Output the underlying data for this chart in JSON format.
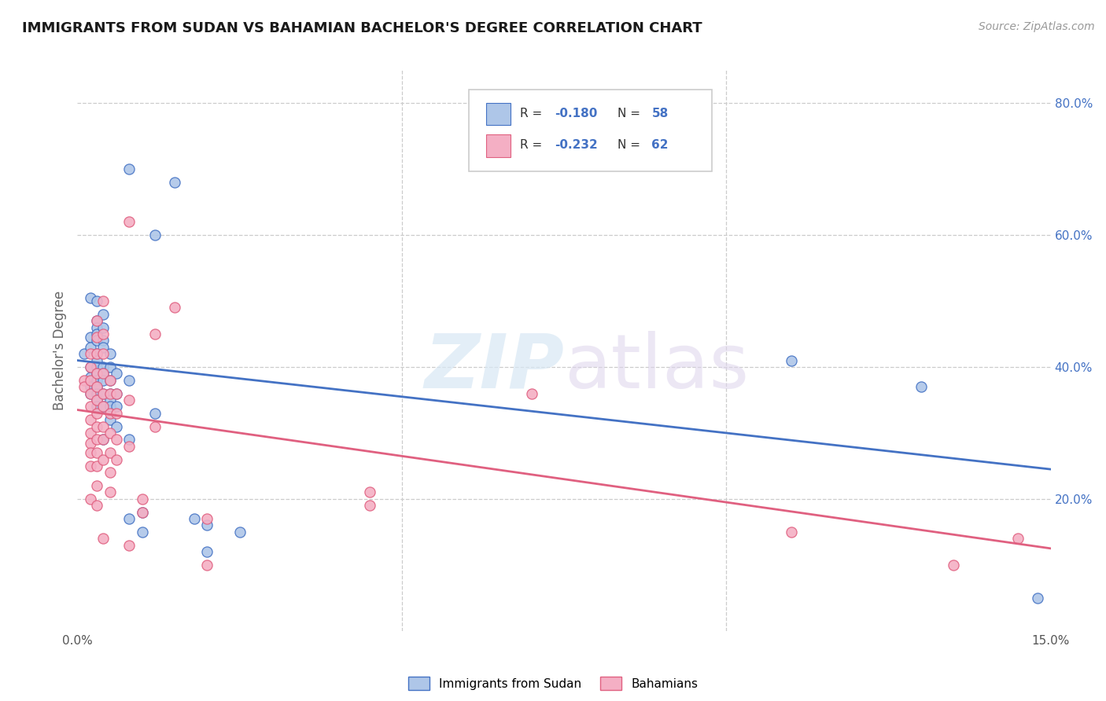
{
  "title": "IMMIGRANTS FROM SUDAN VS BAHAMIAN BACHELOR'S DEGREE CORRELATION CHART",
  "source": "Source: ZipAtlas.com",
  "ylabel": "Bachelor's Degree",
  "legend_bottom1": "Immigrants from Sudan",
  "legend_bottom2": "Bahamians",
  "color_blue": "#aec6e8",
  "color_pink": "#f4afc4",
  "line_blue": "#4472c4",
  "line_pink": "#e06080",
  "xlim": [
    0.0,
    15.0
  ],
  "ylim": [
    0.0,
    85.0
  ],
  "xticks": [
    0.0,
    15.0
  ],
  "xticklabels": [
    "0.0%",
    "15.0%"
  ],
  "right_yticks": [
    20.0,
    40.0,
    60.0,
    80.0
  ],
  "right_yticklabels": [
    "20.0%",
    "40.0%",
    "60.0%",
    "80.0%"
  ],
  "blue_line_x": [
    0.0,
    15.0
  ],
  "blue_line_y": [
    41.0,
    24.5
  ],
  "pink_line_x": [
    0.0,
    15.0
  ],
  "pink_line_y": [
    33.5,
    12.5
  ],
  "blue_scatter": [
    [
      0.1,
      42.0
    ],
    [
      0.2,
      44.5
    ],
    [
      0.2,
      40.0
    ],
    [
      0.2,
      38.5
    ],
    [
      0.2,
      43.0
    ],
    [
      0.2,
      37.0
    ],
    [
      0.2,
      36.0
    ],
    [
      0.2,
      50.5
    ],
    [
      0.3,
      39.0
    ],
    [
      0.3,
      50.0
    ],
    [
      0.3,
      47.0
    ],
    [
      0.3,
      46.0
    ],
    [
      0.3,
      45.0
    ],
    [
      0.3,
      44.0
    ],
    [
      0.3,
      42.0
    ],
    [
      0.3,
      41.0
    ],
    [
      0.3,
      40.0
    ],
    [
      0.3,
      39.0
    ],
    [
      0.3,
      38.0
    ],
    [
      0.3,
      37.0
    ],
    [
      0.3,
      36.0
    ],
    [
      0.3,
      35.0
    ],
    [
      0.3,
      34.0
    ],
    [
      0.4,
      48.0
    ],
    [
      0.4,
      46.0
    ],
    [
      0.4,
      44.0
    ],
    [
      0.4,
      43.0
    ],
    [
      0.4,
      40.0
    ],
    [
      0.4,
      39.0
    ],
    [
      0.4,
      38.0
    ],
    [
      0.4,
      36.0
    ],
    [
      0.4,
      34.0
    ],
    [
      0.4,
      29.0
    ],
    [
      0.5,
      42.0
    ],
    [
      0.5,
      40.0
    ],
    [
      0.5,
      38.0
    ],
    [
      0.5,
      36.0
    ],
    [
      0.5,
      35.0
    ],
    [
      0.5,
      34.0
    ],
    [
      0.5,
      32.0
    ],
    [
      0.6,
      39.0
    ],
    [
      0.6,
      36.0
    ],
    [
      0.6,
      34.0
    ],
    [
      0.6,
      31.0
    ],
    [
      0.8,
      70.0
    ],
    [
      0.8,
      38.0
    ],
    [
      0.8,
      29.0
    ],
    [
      0.8,
      17.0
    ],
    [
      1.0,
      15.0
    ],
    [
      1.0,
      18.0
    ],
    [
      1.2,
      60.0
    ],
    [
      1.2,
      33.0
    ],
    [
      1.5,
      68.0
    ],
    [
      2.0,
      16.0
    ],
    [
      2.0,
      12.0
    ],
    [
      1.8,
      17.0
    ],
    [
      2.5,
      15.0
    ],
    [
      11.0,
      41.0
    ],
    [
      13.0,
      37.0
    ],
    [
      14.8,
      5.0
    ]
  ],
  "pink_scatter": [
    [
      0.1,
      38.0
    ],
    [
      0.1,
      37.0
    ],
    [
      0.2,
      42.0
    ],
    [
      0.2,
      40.0
    ],
    [
      0.2,
      38.0
    ],
    [
      0.2,
      36.0
    ],
    [
      0.2,
      34.0
    ],
    [
      0.2,
      32.0
    ],
    [
      0.2,
      30.0
    ],
    [
      0.2,
      28.5
    ],
    [
      0.2,
      27.0
    ],
    [
      0.2,
      25.0
    ],
    [
      0.2,
      20.0
    ],
    [
      0.3,
      47.0
    ],
    [
      0.3,
      44.5
    ],
    [
      0.3,
      42.0
    ],
    [
      0.3,
      39.0
    ],
    [
      0.3,
      37.0
    ],
    [
      0.3,
      35.0
    ],
    [
      0.3,
      33.0
    ],
    [
      0.3,
      31.0
    ],
    [
      0.3,
      29.0
    ],
    [
      0.3,
      27.0
    ],
    [
      0.3,
      25.0
    ],
    [
      0.3,
      22.0
    ],
    [
      0.3,
      19.0
    ],
    [
      0.4,
      50.0
    ],
    [
      0.4,
      45.0
    ],
    [
      0.4,
      42.0
    ],
    [
      0.4,
      39.0
    ],
    [
      0.4,
      36.0
    ],
    [
      0.4,
      34.0
    ],
    [
      0.4,
      31.0
    ],
    [
      0.4,
      29.0
    ],
    [
      0.4,
      26.0
    ],
    [
      0.4,
      14.0
    ],
    [
      0.5,
      38.0
    ],
    [
      0.5,
      36.0
    ],
    [
      0.5,
      33.0
    ],
    [
      0.5,
      30.0
    ],
    [
      0.5,
      27.0
    ],
    [
      0.5,
      24.0
    ],
    [
      0.5,
      21.0
    ],
    [
      0.6,
      36.0
    ],
    [
      0.6,
      33.0
    ],
    [
      0.6,
      29.0
    ],
    [
      0.6,
      26.0
    ],
    [
      0.8,
      62.0
    ],
    [
      0.8,
      35.0
    ],
    [
      0.8,
      28.0
    ],
    [
      0.8,
      13.0
    ],
    [
      1.0,
      20.0
    ],
    [
      1.0,
      18.0
    ],
    [
      1.2,
      45.0
    ],
    [
      1.2,
      31.0
    ],
    [
      1.5,
      49.0
    ],
    [
      2.0,
      17.0
    ],
    [
      2.0,
      10.0
    ],
    [
      4.5,
      21.0
    ],
    [
      4.5,
      19.0
    ],
    [
      7.0,
      36.0
    ],
    [
      11.0,
      15.0
    ],
    [
      13.5,
      10.0
    ],
    [
      14.5,
      14.0
    ]
  ]
}
